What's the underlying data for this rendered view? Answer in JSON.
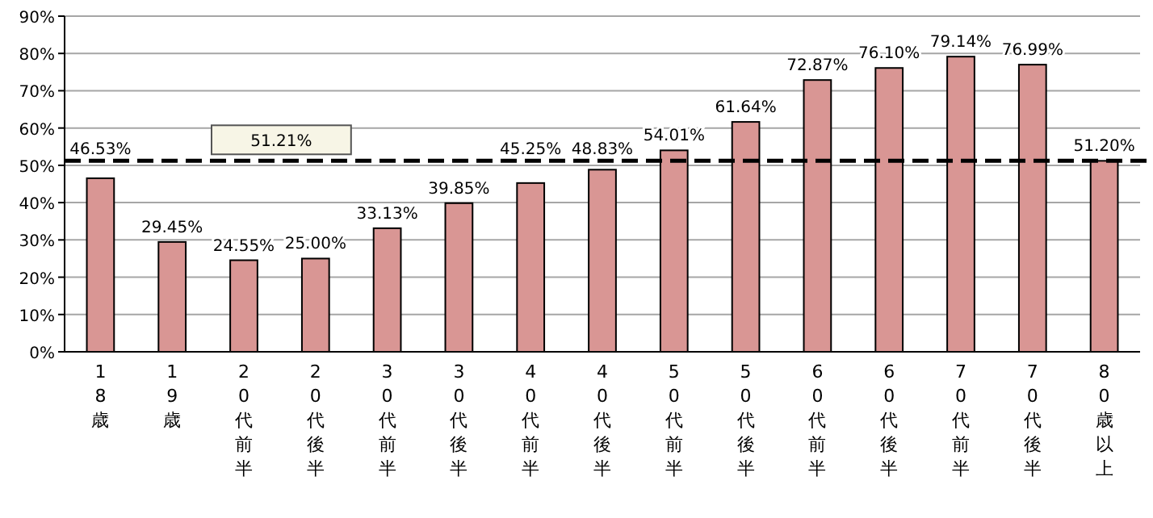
{
  "chart_data": {
    "type": "bar",
    "categories": [
      "18歳",
      "19歳",
      "20代前半",
      "20代後半",
      "30代前半",
      "30代後半",
      "40代前半",
      "40代後半",
      "50代前半",
      "50代後半",
      "60代前半",
      "60代後半",
      "70代前半",
      "70代後半",
      "80歳以上"
    ],
    "values": [
      46.53,
      29.45,
      24.55,
      25.0,
      33.13,
      39.85,
      45.25,
      48.83,
      54.01,
      61.64,
      72.87,
      76.1,
      79.14,
      76.99,
      51.2
    ],
    "value_labels": [
      "46.53%",
      "29.45%",
      "24.55%",
      "25.00%",
      "33.13%",
      "39.85%",
      "45.25%",
      "48.83%",
      "54.01%",
      "61.64%",
      "72.87%",
      "76.10%",
      "79.14%",
      "76.99%",
      "51.20%"
    ],
    "color": "#d99694",
    "ylim": [
      0,
      90
    ],
    "yticks": [
      {
        "value": 0,
        "label": "0%"
      },
      {
        "value": 10,
        "label": "10%"
      },
      {
        "value": 20,
        "label": "20%"
      },
      {
        "value": 30,
        "label": "30%"
      },
      {
        "value": 40,
        "label": "40%"
      },
      {
        "value": 50,
        "label": "50%"
      },
      {
        "value": 60,
        "label": "60%"
      },
      {
        "value": 70,
        "label": "70%"
      },
      {
        "value": 80,
        "label": "80%"
      },
      {
        "value": 90,
        "label": "90%"
      }
    ],
    "grid": "y",
    "ref_lines": [
      {
        "axis": "y",
        "value": 51.21,
        "label": "51.21%",
        "color": "#000000",
        "line_style": "dashed"
      }
    ]
  }
}
